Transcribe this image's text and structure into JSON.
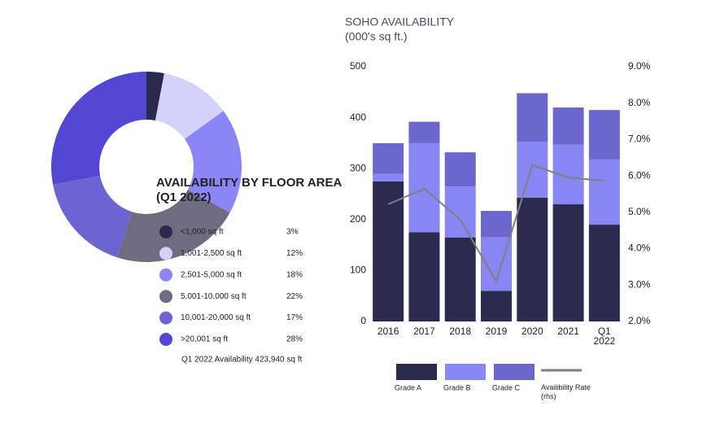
{
  "chart_data": [
    {
      "type": "pie",
      "title": "AVAILABILITY BY FLOOR AREA",
      "subtitle": "(Q1 2022)",
      "categories": [
        "<1,000 sq ft",
        "1,001-2,500 sq ft",
        "2,501-5,000 sq ft",
        "5,001-10,000 sq ft",
        "10,001-20,000 sq ft",
        ">20,001 sq ft"
      ],
      "values": [
        3,
        12,
        18,
        22,
        17,
        28
      ],
      "value_labels": [
        "3%",
        "12%",
        "18%",
        "22%",
        "17%",
        "28%"
      ],
      "colors": [
        "#2b2950",
        "#d4d2fb",
        "#8a86f7",
        "#6f6b80",
        "#6b64d2",
        "#5446d4"
      ],
      "annotation": "Q1 2022 Availability 423,940 sq ft"
    },
    {
      "type": "bar",
      "title": "SOHO AVAILABILITY",
      "subtitle": "(000's sq ft.)",
      "stacked": true,
      "categories": [
        "2016",
        "2017",
        "2018",
        "2019",
        "2020",
        "2021",
        "Q1 2022"
      ],
      "series": [
        {
          "name": "Grade A",
          "color": "#2d2a4f",
          "values": [
            275,
            175,
            165,
            60,
            243,
            230,
            190
          ]
        },
        {
          "name": "Grade B",
          "color": "#8885f5",
          "values": [
            15,
            175,
            100,
            105,
            110,
            117,
            128
          ]
        },
        {
          "name": "Grade C",
          "color": "#6c66cf",
          "values": [
            60,
            42,
            67,
            52,
            95,
            73,
            97
          ]
        },
        {
          "name": "Availibility Rate (rhs)",
          "color": "#808080",
          "axis": "y2",
          "type": "line",
          "values": [
            5.22,
            5.65,
            4.8,
            3.1,
            6.3,
            5.95,
            5.87
          ]
        }
      ],
      "ylim": [
        0,
        500
      ],
      "yticks": [
        0,
        100,
        200,
        300,
        400,
        500
      ],
      "y2lim": [
        2,
        9
      ],
      "y2ticks": [
        {
          "value": 2,
          "label": "2.0%"
        },
        {
          "value": 3,
          "label": "3.0%"
        },
        {
          "value": 4,
          "label": "4.0%"
        },
        {
          "value": 5,
          "label": "5.0%"
        },
        {
          "value": 6,
          "label": "6.0%"
        },
        {
          "value": 7,
          "label": "7.0%"
        },
        {
          "value": 8,
          "label": "8.0%"
        },
        {
          "value": 9,
          "label": "9.0%"
        }
      ]
    }
  ]
}
